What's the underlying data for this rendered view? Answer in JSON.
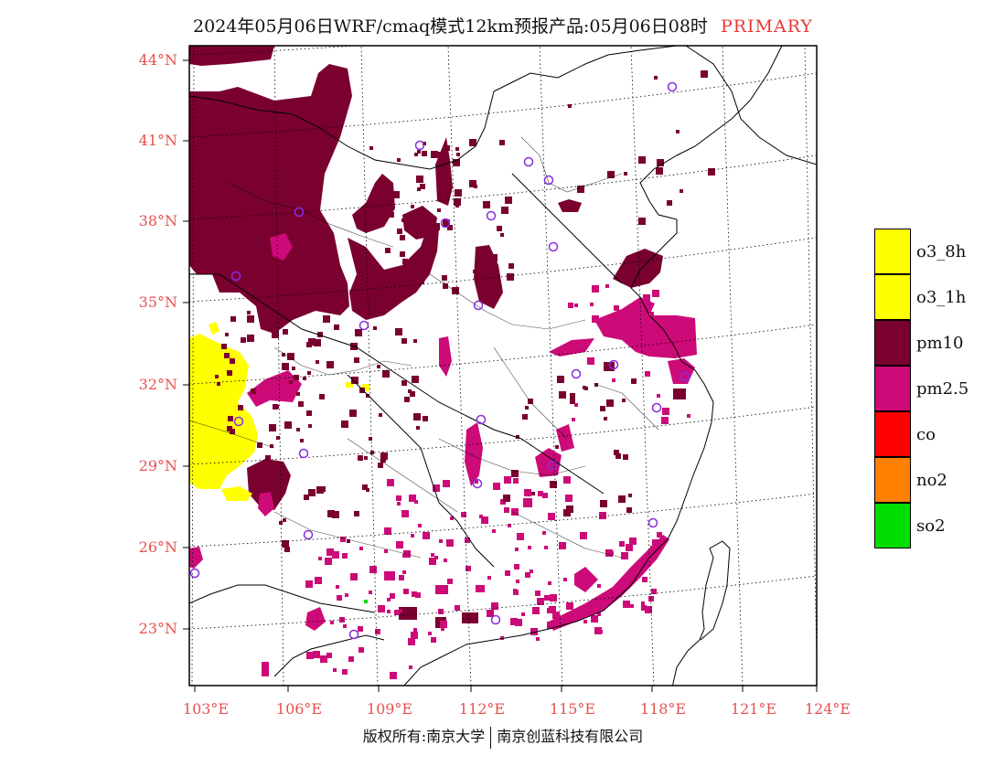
{
  "title": {
    "main": "2024年05月06日WRF/cmaq模式12km预报产品:05月06日08时",
    "tag": "PRIMARY"
  },
  "lat_labels": [
    "44°N",
    "41°N",
    "38°N",
    "35°N",
    "32°N",
    "29°N",
    "26°N",
    "23°N"
  ],
  "lon_labels": [
    "103°E",
    "106°E",
    "109°E",
    "112°E",
    "115°E",
    "118°E",
    "121°E",
    "124°E"
  ],
  "legend": [
    {
      "label": "o3_8h",
      "color": "#ffff00"
    },
    {
      "label": "o3_1h",
      "color": "#ffff00"
    },
    {
      "label": "pm10",
      "color": "#7a0030"
    },
    {
      "label": "pm2.5",
      "color": "#cc0a78"
    },
    {
      "label": "co",
      "color": "#ff0000"
    },
    {
      "label": "no2",
      "color": "#ff7f00"
    },
    {
      "label": "so2",
      "color": "#00dd00"
    }
  ],
  "footer": {
    "left": "版权所有:南京大学",
    "right": "南京创蓝科技有限公司"
  },
  "colors": {
    "pm10": "#7a0030",
    "pm25": "#cc0a78",
    "o3": "#ffff00",
    "so2": "#00dd00",
    "station_marker": "#8a2be2",
    "axis_label": "#e85050"
  }
}
